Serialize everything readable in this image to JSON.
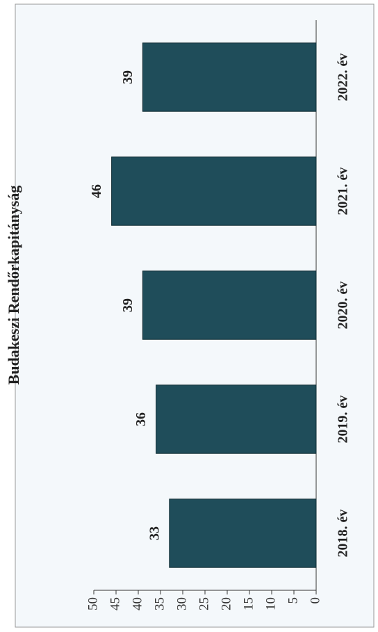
{
  "chart_data": {
    "type": "bar",
    "title": "Budakeszi Rendőrkapitányság",
    "categories": [
      "2018. év",
      "2019. év",
      "2020. év",
      "2021. év",
      "2022. év"
    ],
    "values": [
      33,
      36,
      39,
      46,
      39
    ],
    "color": "#1f4d5a",
    "ylim": [
      0,
      50
    ],
    "yticks": [
      0,
      5,
      10,
      15,
      20,
      25,
      30,
      35,
      40,
      45,
      50
    ]
  }
}
